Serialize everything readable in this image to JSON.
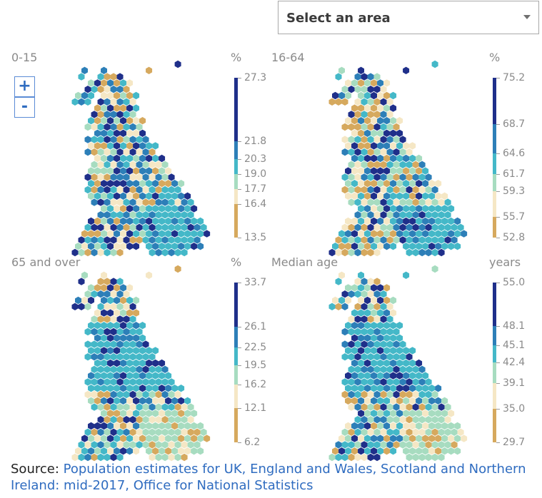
{
  "select": {
    "label": "Select an area"
  },
  "zoom": {
    "in_label": "+",
    "out_label": "-"
  },
  "colors": [
    "#d6a95e",
    "#f5e7c5",
    "#a7dcc0",
    "#44b8c8",
    "#2d7fb8",
    "#1f2f8a"
  ],
  "chart_data": [
    {
      "type": "hex-choropleth",
      "title": "0-15",
      "unit": "%",
      "breaks": [
        13.5,
        16.4,
        17.7,
        19.0,
        20.3,
        21.8,
        27.3
      ],
      "tick_labels": [
        "27.3",
        "21.8",
        "20.3",
        "19.0",
        "17.7",
        "16.4",
        "13.5"
      ]
    },
    {
      "type": "hex-choropleth",
      "title": "16-64",
      "unit": "%",
      "breaks": [
        52.8,
        55.7,
        59.3,
        61.7,
        64.6,
        68.7,
        75.2
      ],
      "tick_labels": [
        "75.2",
        "68.7",
        "64.6",
        "61.7",
        "59.3",
        "55.7",
        "52.8"
      ]
    },
    {
      "type": "hex-choropleth",
      "title": "65 and over",
      "unit": "%",
      "breaks": [
        6.2,
        12.1,
        16.2,
        19.5,
        22.5,
        26.1,
        33.7
      ],
      "tick_labels": [
        "33.7",
        "26.1",
        "22.5",
        "19.5",
        "16.2",
        "12.1",
        "6.2"
      ]
    },
    {
      "type": "hex-choropleth",
      "title": "Median age",
      "unit": "years",
      "breaks": [
        29.7,
        35.0,
        39.1,
        42.4,
        45.1,
        48.1,
        55.0
      ],
      "tick_labels": [
        "55.0",
        "48.1",
        "45.1",
        "42.4",
        "39.1",
        "35.0",
        "29.7"
      ]
    }
  ],
  "source": {
    "prefix": "Source: ",
    "link": "Population estimates for UK, England and Wales, Scotland and Northern Ireland: mid-2017, Office for National Statistics"
  }
}
